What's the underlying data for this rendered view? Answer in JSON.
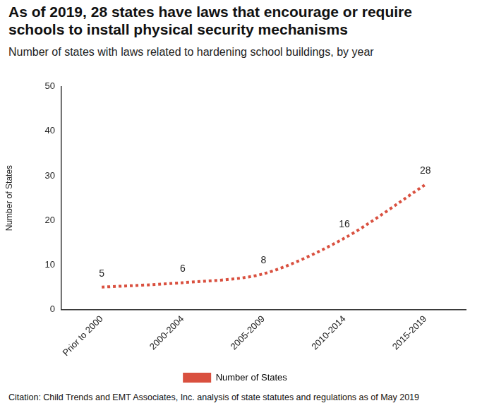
{
  "chart_data": {
    "type": "line",
    "title": "As of 2019, 28 states have laws that encourage or require schools to install physical security mechanisms",
    "subtitle": "Number of states with laws related to hardening school buildings, by year",
    "y_label": "Number of States",
    "source": "Citation: Child Trends and EMT Associates, Inc. analysis of state statutes and regulations as of May 2019",
    "categories": [
      "Prior to 2000",
      "2000-2004",
      "2005-2009",
      "2010-2014",
      "2015-2019"
    ],
    "series": [
      {
        "name": "Number of States",
        "color": "#d9503f",
        "values": [
          5,
          6,
          8,
          16,
          28
        ],
        "line_style": "dotted",
        "marker": "none"
      }
    ],
    "ylim": [
      0,
      50
    ],
    "yticks": [
      0,
      10,
      20,
      30,
      40,
      50
    ],
    "grid": false,
    "data_labels": true,
    "legend": "bottom"
  }
}
